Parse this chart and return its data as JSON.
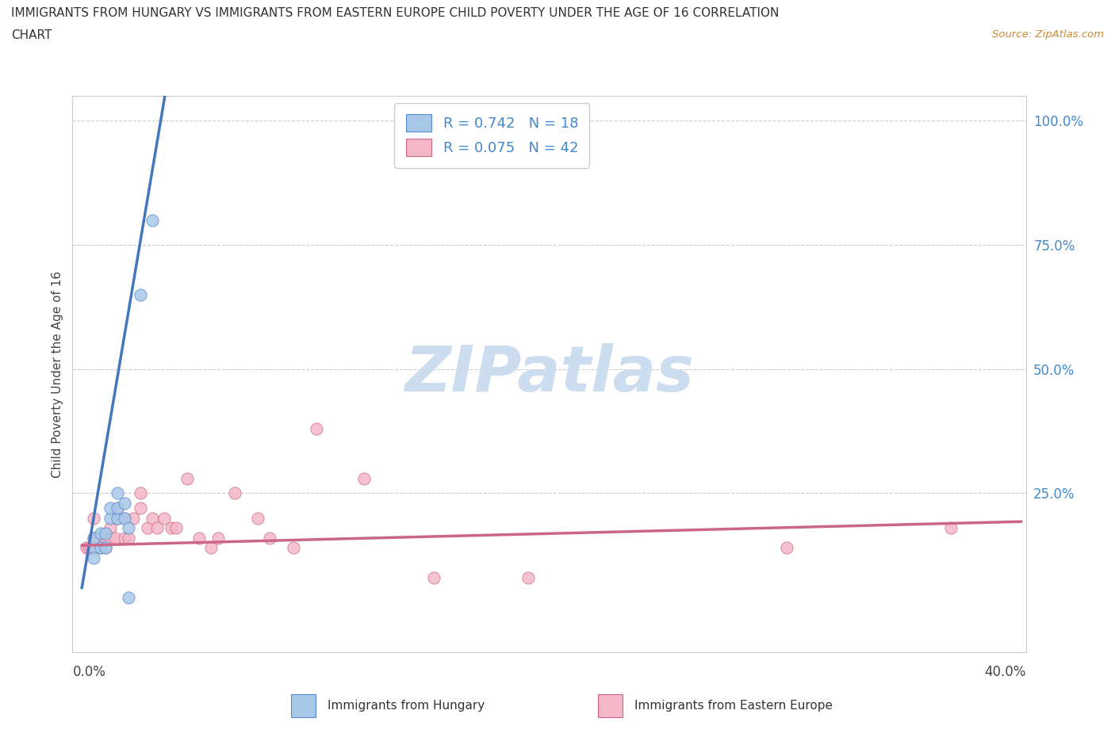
{
  "title_line1": "IMMIGRANTS FROM HUNGARY VS IMMIGRANTS FROM EASTERN EUROPE CHILD POVERTY UNDER THE AGE OF 16 CORRELATION",
  "title_line2": "CHART",
  "source_text": "Source: ZipAtlas.com",
  "ylabel": "Child Poverty Under the Age of 16",
  "blue_color": "#a8c8e8",
  "pink_color": "#f4b8c8",
  "blue_edge_color": "#5588cc",
  "pink_edge_color": "#cc6688",
  "blue_line_color": "#4477bb",
  "pink_line_color": "#cc6688",
  "dash_color": "#88aacc",
  "watermark_color": "#ccddef",
  "blue_scatter_x": [
    0.005,
    0.005,
    0.005,
    0.008,
    0.008,
    0.01,
    0.01,
    0.012,
    0.012,
    0.015,
    0.015,
    0.015,
    0.018,
    0.018,
    0.02,
    0.02,
    0.025,
    0.03
  ],
  "blue_scatter_y": [
    0.14,
    0.16,
    0.12,
    0.14,
    0.17,
    0.14,
    0.17,
    0.2,
    0.22,
    0.2,
    0.22,
    0.25,
    0.2,
    0.23,
    0.04,
    0.18,
    0.65,
    0.8
  ],
  "pink_scatter_x": [
    0.002,
    0.003,
    0.004,
    0.005,
    0.005,
    0.006,
    0.006,
    0.008,
    0.008,
    0.01,
    0.01,
    0.012,
    0.012,
    0.014,
    0.015,
    0.015,
    0.018,
    0.018,
    0.02,
    0.022,
    0.025,
    0.025,
    0.028,
    0.03,
    0.032,
    0.035,
    0.038,
    0.04,
    0.045,
    0.05,
    0.055,
    0.058,
    0.065,
    0.075,
    0.08,
    0.09,
    0.1,
    0.12,
    0.15,
    0.19,
    0.3,
    0.37
  ],
  "pink_scatter_y": [
    0.14,
    0.14,
    0.14,
    0.16,
    0.2,
    0.16,
    0.14,
    0.14,
    0.16,
    0.14,
    0.16,
    0.16,
    0.18,
    0.16,
    0.2,
    0.22,
    0.16,
    0.2,
    0.16,
    0.2,
    0.22,
    0.25,
    0.18,
    0.2,
    0.18,
    0.2,
    0.18,
    0.18,
    0.28,
    0.16,
    0.14,
    0.16,
    0.25,
    0.2,
    0.16,
    0.14,
    0.38,
    0.28,
    0.08,
    0.08,
    0.14,
    0.18
  ],
  "xlim_max": 0.4,
  "ylim_max": 1.05,
  "blue_slope": 28.0,
  "blue_intercept": 0.06,
  "pink_slope": 0.12,
  "pink_intercept": 0.145
}
